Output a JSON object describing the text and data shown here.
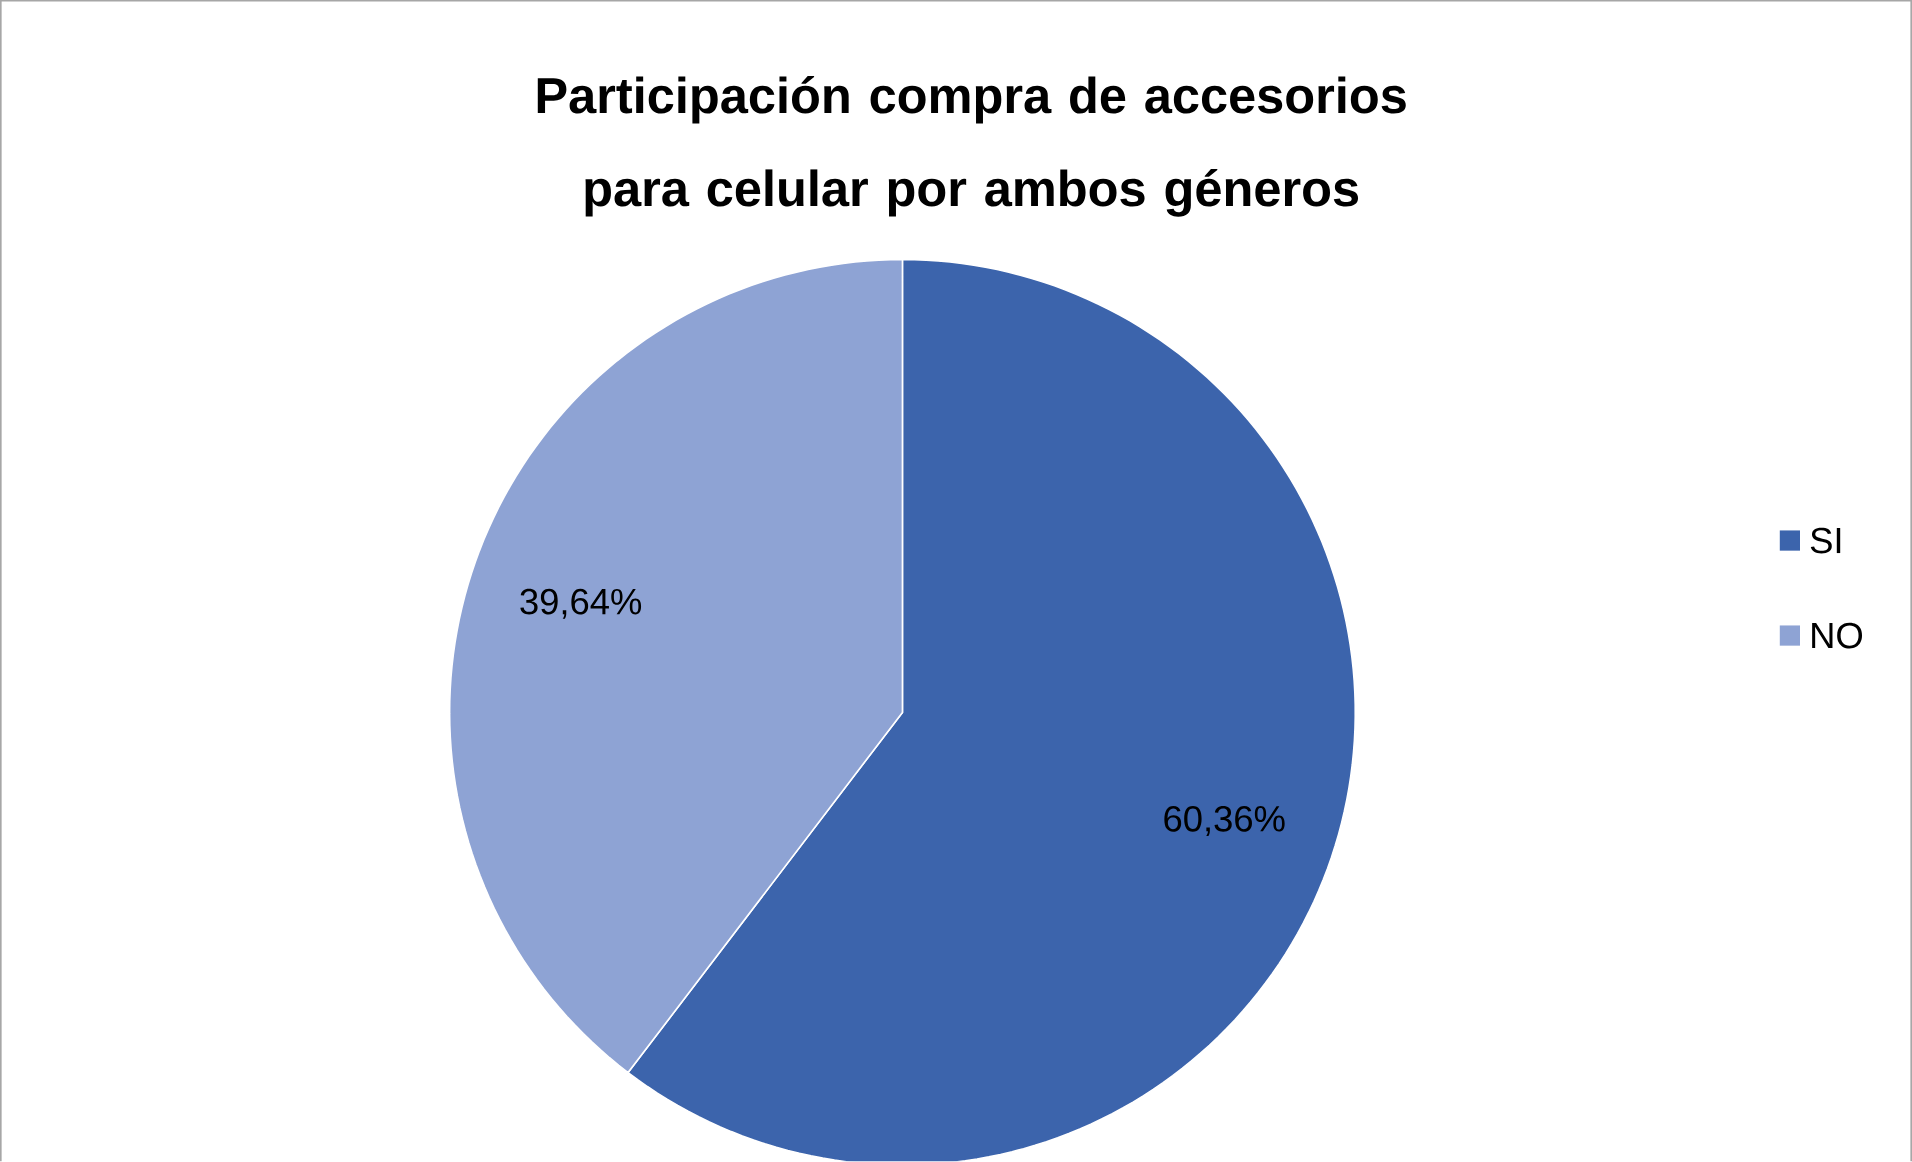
{
  "chart_data": {
    "type": "pie",
    "title": "Participación compra de accesorios para celular por ambos géneros",
    "categories": [
      "SI",
      "NO"
    ],
    "values": [
      60.36,
      39.64
    ],
    "colors": [
      "#3c64ac",
      "#8ea3d4"
    ],
    "value_labels": [
      "60,36%",
      "39,64%"
    ],
    "legend": "right"
  }
}
